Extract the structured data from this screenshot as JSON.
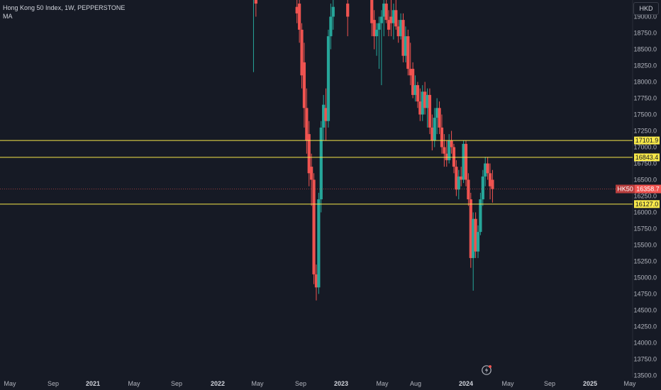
{
  "header": {
    "title": "Hong Kong 50 Index, 1W, PEPPERSTONE",
    "indicator": "MA"
  },
  "currency_button": "HKD",
  "colors": {
    "background": "#161a25",
    "bull": "#26a69a",
    "bear": "#ef5350",
    "level_line": "#f7e84a",
    "price_line": "#ef5350",
    "axis_text": "#b2b5be"
  },
  "chart_data": {
    "type": "candlestick",
    "symbol_badge": "HK50",
    "current_price": "16358.7",
    "y_range": [
      13500,
      19100
    ],
    "x_labels": [
      "May",
      "Sep",
      "2021",
      "May",
      "Sep",
      "2022",
      "May",
      "Sep",
      "2023",
      "May",
      "Aug",
      "2024",
      "May",
      "Sep",
      "2025",
      "May"
    ],
    "y_ticks": [
      "19000.0",
      "18750.0",
      "18500.0",
      "18250.0",
      "18000.0",
      "17750.0",
      "17500.0",
      "17250.0",
      "17000.0",
      "16750.0",
      "16500.0",
      "16250.0",
      "16000.0",
      "15750.0",
      "15500.0",
      "15250.0",
      "15000.0",
      "14750.0",
      "14500.0",
      "14250.0",
      "14000.0",
      "13750.0",
      "13500.0"
    ],
    "horizontal_levels": [
      {
        "value": 17101.9,
        "label": "17101.9"
      },
      {
        "value": 16843.4,
        "label": "16843.4"
      },
      {
        "value": 16127.0,
        "label": "16127.0"
      }
    ],
    "candles": [
      {
        "x": "2022-04-25",
        "o": 19300,
        "h": 19500,
        "l": 18150,
        "c": 19300
      },
      {
        "x": "2022-05-02",
        "o": 19300,
        "h": 19400,
        "l": 19000,
        "c": 19200
      },
      {
        "x": "2022-08-29",
        "o": 19150,
        "h": 19300,
        "l": 18900,
        "c": 19050
      },
      {
        "x": "2022-09-05",
        "o": 19200,
        "h": 19400,
        "l": 18600,
        "c": 18800
      },
      {
        "x": "2022-09-12",
        "o": 18800,
        "h": 18900,
        "l": 17900,
        "c": 18100
      },
      {
        "x": "2022-09-19",
        "o": 18300,
        "h": 18600,
        "l": 17300,
        "c": 17600
      },
      {
        "x": "2022-09-26",
        "o": 17600,
        "h": 17900,
        "l": 16900,
        "c": 17100
      },
      {
        "x": "2022-10-03",
        "o": 17200,
        "h": 17400,
        "l": 16400,
        "c": 16600
      },
      {
        "x": "2022-10-10",
        "o": 16700,
        "h": 16900,
        "l": 16100,
        "c": 16500
      },
      {
        "x": "2022-10-17",
        "o": 16500,
        "h": 16600,
        "l": 14900,
        "c": 15050
      },
      {
        "x": "2022-10-24",
        "o": 15050,
        "h": 15200,
        "l": 14650,
        "c": 14850
      },
      {
        "x": "2022-10-31",
        "o": 14850,
        "h": 16300,
        "l": 14750,
        "c": 16200
      },
      {
        "x": "2022-11-07",
        "o": 16200,
        "h": 17400,
        "l": 16000,
        "c": 17300
      },
      {
        "x": "2022-11-14",
        "o": 17300,
        "h": 17800,
        "l": 17100,
        "c": 17650
      },
      {
        "x": "2022-11-21",
        "o": 17600,
        "h": 17900,
        "l": 17100,
        "c": 17400
      },
      {
        "x": "2022-11-28",
        "o": 17400,
        "h": 18800,
        "l": 17300,
        "c": 18700
      },
      {
        "x": "2022-12-05",
        "o": 18700,
        "h": 19200,
        "l": 18500,
        "c": 19000
      },
      {
        "x": "2022-12-12",
        "o": 19000,
        "h": 19300,
        "l": 18800,
        "c": 19150
      },
      {
        "x": "2023-01-23",
        "o": 19200,
        "h": 19300,
        "l": 18700,
        "c": 19000
      },
      {
        "x": "2023-04-03",
        "o": 19300,
        "h": 19400,
        "l": 18700,
        "c": 18900
      },
      {
        "x": "2023-04-10",
        "o": 18950,
        "h": 19100,
        "l": 18500,
        "c": 18700
      },
      {
        "x": "2023-04-17",
        "o": 18700,
        "h": 18900,
        "l": 18400,
        "c": 18800
      },
      {
        "x": "2023-04-24",
        "o": 18800,
        "h": 19000,
        "l": 18200,
        "c": 18900
      },
      {
        "x": "2023-05-01",
        "o": 18900,
        "h": 19100,
        "l": 17950,
        "c": 19000
      },
      {
        "x": "2023-05-08",
        "o": 19000,
        "h": 19300,
        "l": 18700,
        "c": 19200
      },
      {
        "x": "2023-05-15",
        "o": 19200,
        "h": 19400,
        "l": 18900,
        "c": 18950
      },
      {
        "x": "2023-05-22",
        "o": 18950,
        "h": 19100,
        "l": 18700,
        "c": 18800
      },
      {
        "x": "2023-05-29",
        "o": 19000,
        "h": 19300,
        "l": 18700,
        "c": 18900
      },
      {
        "x": "2023-06-05",
        "o": 18900,
        "h": 19200,
        "l": 18650,
        "c": 19100
      },
      {
        "x": "2023-06-12",
        "o": 19100,
        "h": 19400,
        "l": 18800,
        "c": 18850
      },
      {
        "x": "2023-06-19",
        "o": 18850,
        "h": 18950,
        "l": 18600,
        "c": 18700
      },
      {
        "x": "2023-06-26",
        "o": 18700,
        "h": 19050,
        "l": 18650,
        "c": 18950
      },
      {
        "x": "2023-07-03",
        "o": 18950,
        "h": 19050,
        "l": 18300,
        "c": 18400
      },
      {
        "x": "2023-07-10",
        "o": 18400,
        "h": 18850,
        "l": 18300,
        "c": 18700
      },
      {
        "x": "2023-07-17",
        "o": 18700,
        "h": 18800,
        "l": 18100,
        "c": 18200
      },
      {
        "x": "2023-07-24",
        "o": 18200,
        "h": 18600,
        "l": 17950,
        "c": 18100
      },
      {
        "x": "2023-07-31",
        "o": 18200,
        "h": 18300,
        "l": 17750,
        "c": 17800
      },
      {
        "x": "2023-08-07",
        "o": 17800,
        "h": 18100,
        "l": 17700,
        "c": 17950
      },
      {
        "x": "2023-08-14",
        "o": 17950,
        "h": 18000,
        "l": 17600,
        "c": 17700
      },
      {
        "x": "2023-08-21",
        "o": 17700,
        "h": 17900,
        "l": 17400,
        "c": 17500
      },
      {
        "x": "2023-08-28",
        "o": 17500,
        "h": 17950,
        "l": 17400,
        "c": 17850
      },
      {
        "x": "2023-09-04",
        "o": 17850,
        "h": 18000,
        "l": 17500,
        "c": 17600
      },
      {
        "x": "2023-09-11",
        "o": 17600,
        "h": 17900,
        "l": 17300,
        "c": 17800
      },
      {
        "x": "2023-09-18",
        "o": 17800,
        "h": 17900,
        "l": 17200,
        "c": 17300
      },
      {
        "x": "2023-09-25",
        "o": 17300,
        "h": 17500,
        "l": 16950,
        "c": 17100
      },
      {
        "x": "2023-10-02",
        "o": 17100,
        "h": 17600,
        "l": 17000,
        "c": 17450
      },
      {
        "x": "2023-10-09",
        "o": 17450,
        "h": 17750,
        "l": 17200,
        "c": 17600
      },
      {
        "x": "2023-10-16",
        "o": 17600,
        "h": 17700,
        "l": 17200,
        "c": 17300
      },
      {
        "x": "2023-10-23",
        "o": 17300,
        "h": 17500,
        "l": 16900,
        "c": 17000
      },
      {
        "x": "2023-10-30",
        "o": 17000,
        "h": 17200,
        "l": 16700,
        "c": 16900
      },
      {
        "x": "2023-11-06",
        "o": 16900,
        "h": 17100,
        "l": 16700,
        "c": 16800
      },
      {
        "x": "2023-11-13",
        "o": 16800,
        "h": 17200,
        "l": 16750,
        "c": 17100
      },
      {
        "x": "2023-11-20",
        "o": 17100,
        "h": 17250,
        "l": 16900,
        "c": 17000
      },
      {
        "x": "2023-11-27",
        "o": 17000,
        "h": 17050,
        "l": 16600,
        "c": 16700
      },
      {
        "x": "2023-12-04",
        "o": 16700,
        "h": 16800,
        "l": 16250,
        "c": 16350
      },
      {
        "x": "2023-12-11",
        "o": 16350,
        "h": 16650,
        "l": 16200,
        "c": 16550
      },
      {
        "x": "2023-12-18",
        "o": 16550,
        "h": 16700,
        "l": 16400,
        "c": 16500
      },
      {
        "x": "2023-12-25",
        "o": 16500,
        "h": 17100,
        "l": 16450,
        "c": 17050
      },
      {
        "x": "2024-01-01",
        "o": 17050,
        "h": 17100,
        "l": 16400,
        "c": 16500
      },
      {
        "x": "2024-01-08",
        "o": 16500,
        "h": 16600,
        "l": 16100,
        "c": 16200
      },
      {
        "x": "2024-01-15",
        "o": 16200,
        "h": 16300,
        "l": 15150,
        "c": 15300
      },
      {
        "x": "2024-01-22",
        "o": 15300,
        "h": 16000,
        "l": 14800,
        "c": 15900
      },
      {
        "x": "2024-01-29",
        "o": 15900,
        "h": 16000,
        "l": 15300,
        "c": 15400
      },
      {
        "x": "2024-02-05",
        "o": 15400,
        "h": 15800,
        "l": 15300,
        "c": 15700
      },
      {
        "x": "2024-02-12",
        "o": 15700,
        "h": 16300,
        "l": 15650,
        "c": 16200
      },
      {
        "x": "2024-02-19",
        "o": 16200,
        "h": 16650,
        "l": 16100,
        "c": 16550
      },
      {
        "x": "2024-02-26",
        "o": 16550,
        "h": 16850,
        "l": 16400,
        "c": 16750
      },
      {
        "x": "2024-03-04",
        "o": 16750,
        "h": 16850,
        "l": 16500,
        "c": 16600
      },
      {
        "x": "2024-03-11",
        "o": 16600,
        "h": 16750,
        "l": 16200,
        "c": 16400
      },
      {
        "x": "2024-03-18",
        "o": 16500,
        "h": 16650,
        "l": 16150,
        "c": 16359
      }
    ]
  }
}
